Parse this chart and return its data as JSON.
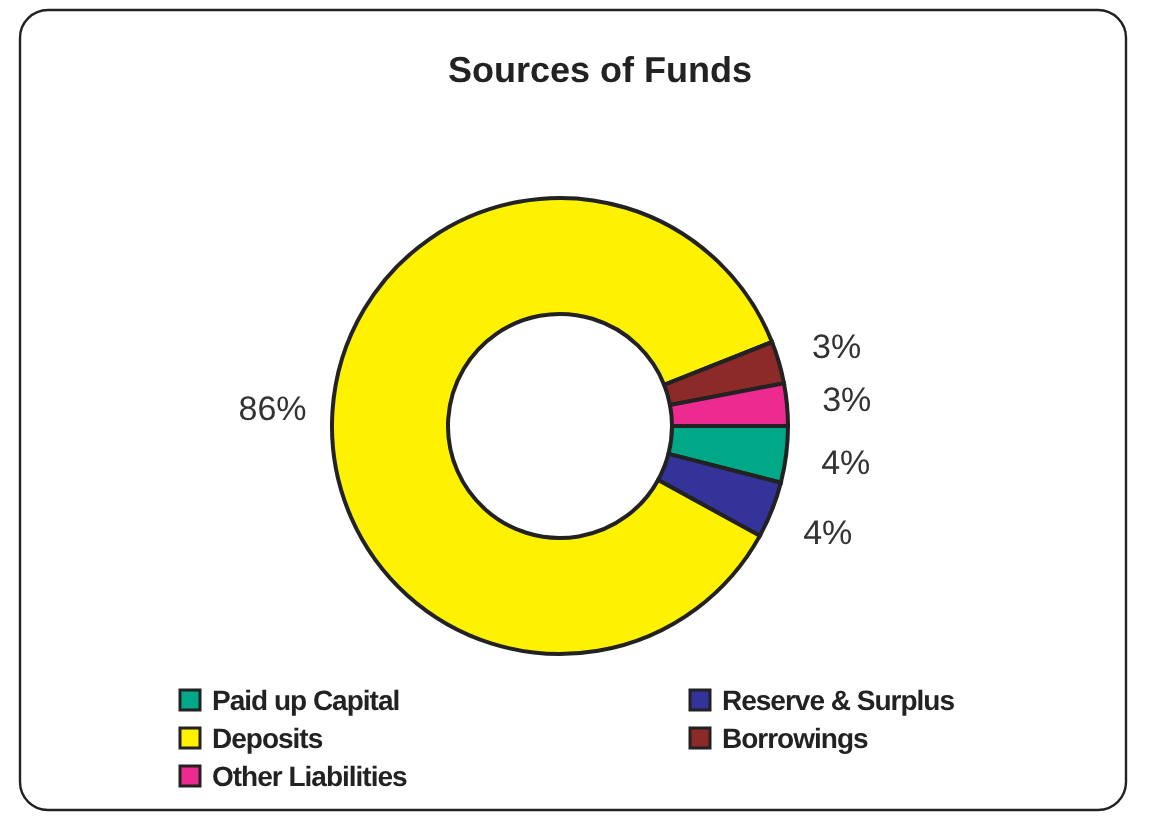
{
  "chart_data": {
    "type": "donut",
    "title": "Sources of Funds",
    "categories": [
      "Paid up Capital",
      "Reserve & Surplus",
      "Deposits",
      "Borrowings",
      "Other Liabilities"
    ],
    "values": [
      4,
      4,
      86,
      3,
      3
    ],
    "colors": [
      "#00a887",
      "#333399",
      "#fff200",
      "#8b2a28",
      "#ec2a8f"
    ],
    "value_labels": [
      "4%",
      "4%",
      "86%",
      "3%",
      "3%"
    ],
    "legend": "bottom"
  }
}
